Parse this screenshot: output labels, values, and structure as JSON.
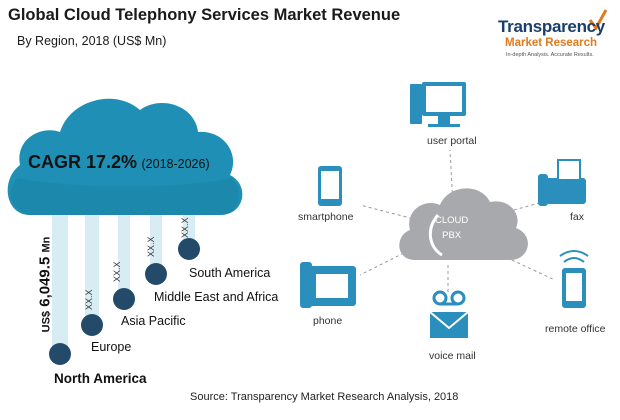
{
  "header": {
    "title": "Global Cloud Telephony Services Market Revenue",
    "subtitle": "By Region, 2018 (US$ Mn)"
  },
  "logo": {
    "main": "Transparency",
    "sub": "Market Research",
    "tagline": "In-depth Analysis. Accurate Results."
  },
  "cagr": {
    "label": "CAGR 17.2%",
    "period": "(2018-2026)"
  },
  "total": {
    "unit": "US$",
    "value": "6,049.5",
    "suffix": "Mn"
  },
  "chart_data": {
    "type": "bar",
    "title": "Global Cloud Telephony Services Market Revenue",
    "subtitle": "By Region, 2018 (US$ Mn)",
    "categories": [
      "North America",
      "Europe",
      "Asia Pacific",
      "Middle East and Africa",
      "South America"
    ],
    "value_labels": [
      "",
      "XX.X",
      "XX.X",
      "XX.X",
      "XX.X"
    ],
    "total_label": "US$ 6,049.5 Mn",
    "cagr": "CAGR 17.2% (2018-2026)"
  },
  "diagram": {
    "center": [
      "CLOUD",
      "PBX"
    ],
    "services": {
      "user_portal": "user portal",
      "smartphone": "smartphone",
      "fax": "fax",
      "phone": "phone",
      "voice_mail": "voice mail",
      "remote_office": "remote office"
    }
  },
  "colors": {
    "cloud": "#1f8fb5",
    "cloud_dark": "#177a9c",
    "node": "#244a6a",
    "string": "#d8ecf3",
    "icon": "#2a8fbd",
    "pbx_cloud": "#a7a9ac"
  },
  "source": "Source: Transparency Market Research Analysis, 2018"
}
